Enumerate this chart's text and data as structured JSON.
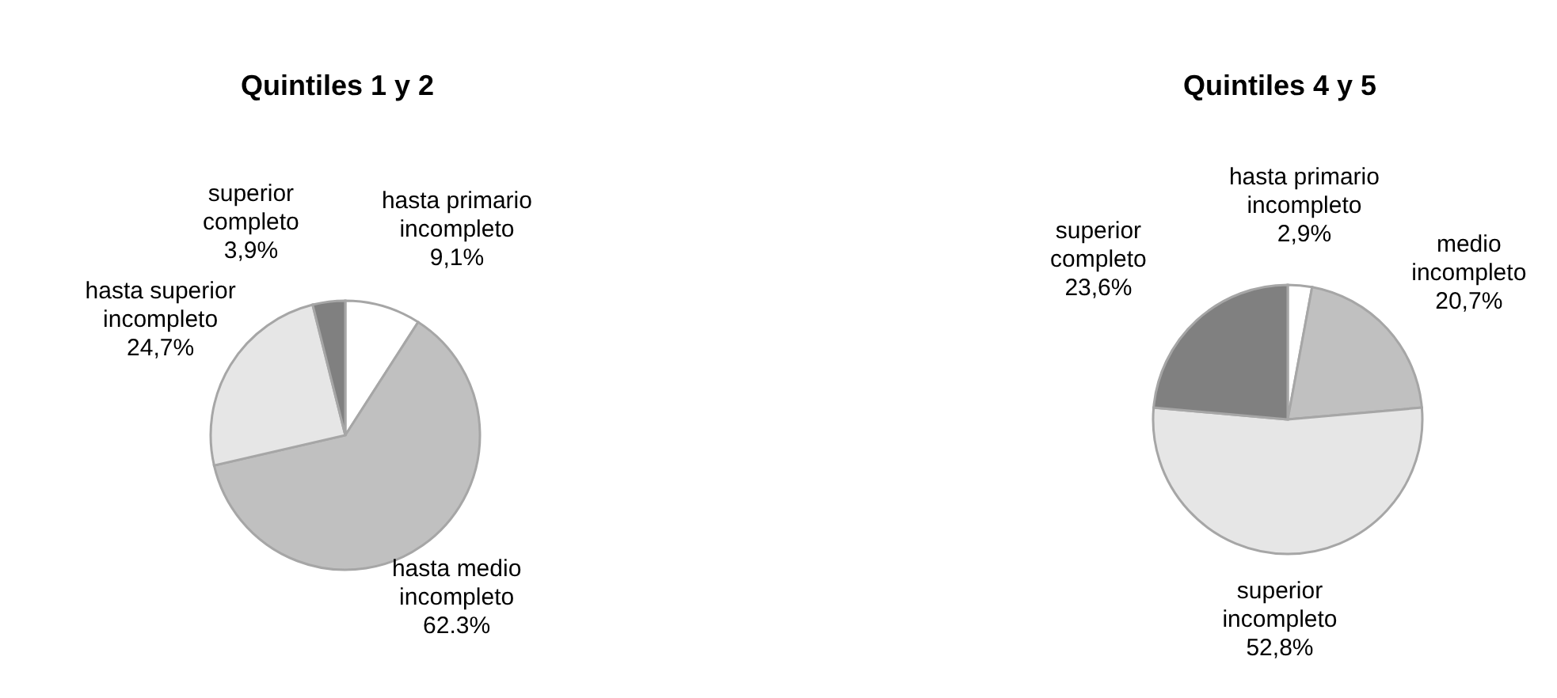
{
  "chart_data": [
    {
      "type": "pie",
      "title": "Quintiles 1 y 2",
      "categories": [
        "hasta primario incompleto",
        "hasta medio incompleto",
        "hasta superior incompleto",
        "superior completo"
      ],
      "values": [
        9.1,
        62.3,
        24.7,
        3.9
      ],
      "value_labels": [
        "9,1%",
        "62.3%",
        "24,7%",
        "3,9%"
      ],
      "colors": [
        "#ffffff",
        "#c0c0c0",
        "#e6e6e6",
        "#808080"
      ],
      "legend": false
    },
    {
      "type": "pie",
      "title": "Quintiles 4 y 5",
      "categories": [
        "hasta primario incompleto",
        "medio incompleto",
        "superior incompleto",
        "superior completo"
      ],
      "values": [
        2.9,
        20.7,
        52.8,
        23.6
      ],
      "value_labels": [
        "2,9%",
        "20,7%",
        "52,8%",
        "23,6%"
      ],
      "colors": [
        "#ffffff",
        "#c0c0c0",
        "#e6e6e6",
        "#808080"
      ],
      "legend": false
    }
  ]
}
